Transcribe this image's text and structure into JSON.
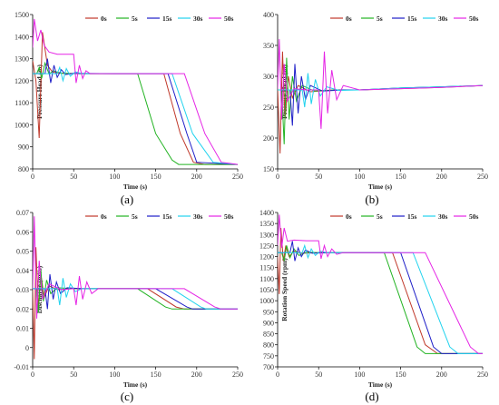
{
  "colors": {
    "0s": "#c0392b",
    "5s": "#22b322",
    "15s": "#1f1fc8",
    "30s": "#22d3ee",
    "50s": "#e524e5"
  },
  "legend": [
    "0s",
    "5s",
    "15s",
    "30s",
    "50s"
  ],
  "chart_data": [
    {
      "panel": "(a)",
      "type": "line",
      "xlabel": "Time (s)",
      "ylabel": "Pressure Head (m)",
      "xlim": [
        0,
        250
      ],
      "ylim": [
        800,
        1500
      ],
      "xticks": [
        0,
        50,
        100,
        150,
        200,
        250
      ],
      "yticks": [
        800,
        900,
        1000,
        1100,
        1200,
        1300,
        1400,
        1500
      ],
      "legend_position": "top-right",
      "series": [
        {
          "name": "0s",
          "color": "#c0392b",
          "x": [
            0,
            4,
            8,
            12,
            18,
            24,
            30,
            40,
            60,
            100,
            140,
            160,
            180,
            196,
            210,
            250
          ],
          "y": [
            1290,
            1200,
            940,
            1420,
            1270,
            1240,
            1235,
            1233,
            1232,
            1232,
            1232,
            1232,
            960,
            830,
            820,
            820
          ]
        },
        {
          "name": "5s",
          "color": "#22b322",
          "x": [
            0,
            5,
            8,
            11,
            15,
            20,
            25,
            35,
            60,
            100,
            128,
            150,
            170,
            178,
            250
          ],
          "y": [
            1232,
            1232,
            1260,
            1210,
            1280,
            1230,
            1245,
            1233,
            1232,
            1232,
            1232,
            960,
            840,
            820,
            820
          ]
        },
        {
          "name": "15s",
          "color": "#1f1fc8",
          "x": [
            0,
            15,
            18,
            22,
            26,
            30,
            35,
            40,
            50,
            100,
            150,
            165,
            188,
            200,
            250
          ],
          "y": [
            1232,
            1232,
            1300,
            1190,
            1270,
            1215,
            1250,
            1228,
            1233,
            1232,
            1232,
            1232,
            960,
            830,
            820
          ]
        },
        {
          "name": "30s",
          "color": "#22d3ee",
          "x": [
            0,
            30,
            33,
            37,
            41,
            46,
            52,
            60,
            100,
            150,
            170,
            195,
            220,
            250
          ],
          "y": [
            1232,
            1232,
            1260,
            1200,
            1255,
            1220,
            1240,
            1232,
            1232,
            1232,
            1232,
            960,
            830,
            820
          ]
        },
        {
          "name": "50s",
          "color": "#e524e5",
          "x": [
            0,
            2,
            6,
            10,
            14,
            20,
            30,
            45,
            50,
            53,
            57,
            61,
            65,
            70,
            100,
            150,
            185,
            210,
            230,
            250
          ],
          "y": [
            1350,
            1480,
            1380,
            1430,
            1360,
            1330,
            1320,
            1320,
            1320,
            1190,
            1270,
            1210,
            1245,
            1232,
            1232,
            1232,
            1232,
            960,
            830,
            820
          ]
        }
      ]
    },
    {
      "panel": "(b)",
      "type": "line",
      "xlabel": "Time (s)",
      "ylabel": "Pressure Head (m)",
      "xlim": [
        0,
        250
      ],
      "ylim": [
        150,
        400
      ],
      "xticks": [
        0,
        50,
        100,
        150,
        200,
        250
      ],
      "yticks": [
        150,
        200,
        250,
        300,
        350,
        400
      ],
      "legend_position": "top-right",
      "series": [
        {
          "name": "0s",
          "color": "#c0392b",
          "x": [
            0,
            3,
            6,
            9,
            13,
            18,
            25,
            40,
            70,
            100,
            150,
            200,
            250
          ],
          "y": [
            280,
            175,
            340,
            230,
            300,
            265,
            285,
            275,
            278,
            278,
            280,
            282,
            285
          ]
        },
        {
          "name": "5s",
          "color": "#22b322",
          "x": [
            0,
            5,
            8,
            11,
            14,
            18,
            23,
            30,
            45,
            70,
            100,
            150,
            200,
            250
          ],
          "y": [
            278,
            278,
            190,
            330,
            230,
            300,
            260,
            285,
            276,
            278,
            278,
            281,
            283,
            285
          ]
        },
        {
          "name": "15s",
          "color": "#1f1fc8",
          "x": [
            0,
            15,
            18,
            21,
            25,
            29,
            34,
            40,
            55,
            80,
            100,
            150,
            200,
            250
          ],
          "y": [
            278,
            278,
            220,
            320,
            240,
            300,
            262,
            285,
            276,
            278,
            278,
            281,
            283,
            285
          ]
        },
        {
          "name": "30s",
          "color": "#22d3ee",
          "x": [
            0,
            30,
            33,
            37,
            41,
            46,
            52,
            60,
            75,
            100,
            150,
            200,
            250
          ],
          "y": [
            278,
            278,
            250,
            305,
            255,
            295,
            268,
            283,
            277,
            278,
            281,
            283,
            285
          ]
        },
        {
          "name": "50s",
          "color": "#e524e5",
          "x": [
            0,
            2,
            5,
            8,
            12,
            20,
            35,
            50,
            53,
            57,
            61,
            66,
            72,
            80,
            100,
            150,
            200,
            250
          ],
          "y": [
            280,
            360,
            230,
            320,
            260,
            280,
            278,
            278,
            215,
            340,
            240,
            310,
            262,
            285,
            278,
            280,
            282,
            285
          ]
        }
      ]
    },
    {
      "panel": "(c)",
      "type": "line",
      "xlabel": "Time (s)",
      "ylabel": "Discharge (m³/s)",
      "xlim": [
        0,
        250
      ],
      "ylim": [
        -0.01,
        0.07
      ],
      "xticks": [
        0,
        50,
        100,
        150,
        200,
        250
      ],
      "yticks": [
        -0.01,
        0,
        0.01,
        0.02,
        0.03,
        0.04,
        0.05,
        0.06,
        0.07
      ],
      "legend_position": "top-right",
      "series": [
        {
          "name": "0s",
          "color": "#c0392b",
          "x": [
            0,
            2,
            4,
            7,
            10,
            14,
            20,
            30,
            50,
            100,
            140,
            175,
            185,
            250
          ],
          "y": [
            0.03,
            -0.006,
            0.052,
            0.02,
            0.038,
            0.026,
            0.032,
            0.03,
            0.0305,
            0.0305,
            0.0305,
            0.021,
            0.02,
            0.02
          ]
        },
        {
          "name": "5s",
          "color": "#22b322",
          "x": [
            0,
            5,
            7,
            10,
            13,
            17,
            22,
            30,
            50,
            100,
            128,
            162,
            170,
            250
          ],
          "y": [
            0.0305,
            0.0305,
            0.018,
            0.04,
            0.024,
            0.035,
            0.028,
            0.031,
            0.0305,
            0.0305,
            0.0305,
            0.021,
            0.02,
            0.02
          ]
        },
        {
          "name": "15s",
          "color": "#1f1fc8",
          "x": [
            0,
            15,
            18,
            21,
            25,
            29,
            34,
            42,
            60,
            100,
            150,
            188,
            195,
            250
          ],
          "y": [
            0.0305,
            0.0305,
            0.02,
            0.038,
            0.025,
            0.034,
            0.028,
            0.031,
            0.0305,
            0.0305,
            0.0305,
            0.021,
            0.02,
            0.02
          ]
        },
        {
          "name": "30s",
          "color": "#22d3ee",
          "x": [
            0,
            30,
            33,
            37,
            41,
            46,
            52,
            60,
            100,
            150,
            170,
            205,
            212,
            250
          ],
          "y": [
            0.0305,
            0.0305,
            0.022,
            0.036,
            0.026,
            0.033,
            0.029,
            0.0305,
            0.0305,
            0.0305,
            0.0305,
            0.021,
            0.02,
            0.02
          ]
        },
        {
          "name": "50s",
          "color": "#e524e5",
          "x": [
            0,
            2,
            5,
            8,
            12,
            20,
            35,
            50,
            53,
            57,
            61,
            66,
            72,
            80,
            100,
            150,
            185,
            222,
            230,
            250
          ],
          "y": [
            0.03,
            0.068,
            0.015,
            0.045,
            0.025,
            0.033,
            0.03,
            0.0305,
            0.022,
            0.037,
            0.025,
            0.034,
            0.028,
            0.0305,
            0.0305,
            0.0305,
            0.0305,
            0.021,
            0.02,
            0.02
          ]
        }
      ]
    },
    {
      "panel": "(d)",
      "type": "line",
      "xlabel": "Time (s)",
      "ylabel": "Rotation Speed (rpm)",
      "xlim": [
        0,
        250
      ],
      "ylim": [
        700,
        1400
      ],
      "xticks": [
        0,
        50,
        100,
        150,
        200,
        250
      ],
      "yticks": [
        700,
        750,
        800,
        850,
        900,
        950,
        1000,
        1050,
        1100,
        1150,
        1200,
        1250,
        1300,
        1350,
        1400
      ],
      "legend_position": "top-right",
      "series": [
        {
          "name": "0s",
          "color": "#c0392b",
          "x": [
            0,
            2,
            4,
            7,
            10,
            14,
            20,
            30,
            50,
            100,
            140,
            180,
            195,
            250
          ],
          "y": [
            1200,
            1030,
            1330,
            1180,
            1250,
            1200,
            1225,
            1215,
            1218,
            1218,
            1218,
            800,
            760,
            760
          ]
        },
        {
          "name": "5s",
          "color": "#22b322",
          "x": [
            0,
            5,
            8,
            11,
            15,
            20,
            26,
            35,
            50,
            100,
            130,
            170,
            180,
            250
          ],
          "y": [
            1218,
            1218,
            1180,
            1250,
            1195,
            1235,
            1205,
            1220,
            1218,
            1218,
            1218,
            790,
            760,
            760
          ]
        },
        {
          "name": "15s",
          "color": "#1f1fc8",
          "x": [
            0,
            15,
            18,
            21,
            25,
            29,
            34,
            42,
            60,
            100,
            150,
            190,
            200,
            250
          ],
          "y": [
            1218,
            1218,
            1270,
            1180,
            1240,
            1200,
            1230,
            1215,
            1218,
            1218,
            1218,
            790,
            760,
            760
          ]
        },
        {
          "name": "30s",
          "color": "#22d3ee",
          "x": [
            0,
            30,
            33,
            37,
            41,
            46,
            52,
            60,
            100,
            150,
            165,
            210,
            220,
            250
          ],
          "y": [
            1218,
            1218,
            1250,
            1195,
            1235,
            1205,
            1225,
            1218,
            1218,
            1218,
            1218,
            790,
            760,
            760
          ]
        },
        {
          "name": "50s",
          "color": "#e524e5",
          "x": [
            0,
            2,
            5,
            8,
            12,
            20,
            35,
            50,
            53,
            57,
            61,
            66,
            72,
            80,
            100,
            150,
            180,
            235,
            245,
            250
          ],
          "y": [
            1250,
            1390,
            1240,
            1330,
            1270,
            1275,
            1272,
            1272,
            1190,
            1250,
            1200,
            1235,
            1210,
            1218,
            1218,
            1218,
            1218,
            790,
            760,
            760
          ]
        }
      ]
    }
  ]
}
